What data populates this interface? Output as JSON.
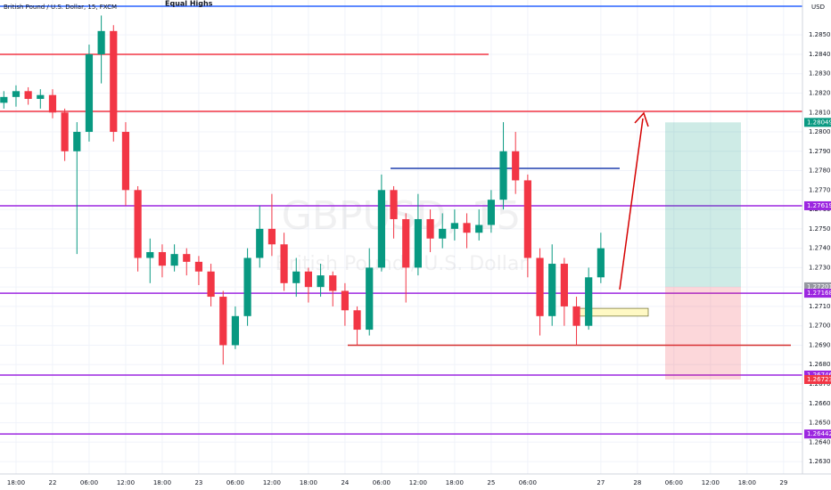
{
  "chart_data": {
    "type": "candlestick",
    "title": "British Pound / U.S. Dollar, 15, FXCM",
    "watermark": "GBPUSD, 15",
    "watermark_subtitle": "British Pound / U.S. Dollar",
    "annotation": "Equal Highs",
    "currency": "USD",
    "up_color": "#089981",
    "down_color": "#f23645",
    "xlim": [
      -2.63,
      129.1
    ],
    "xticks": [
      {
        "value": 0,
        "label": "18:00"
      },
      {
        "value": 6,
        "label": "22"
      },
      {
        "value": 12,
        "label": "06:00"
      },
      {
        "value": 18,
        "label": "12:00"
      },
      {
        "value": 24,
        "label": "18:00"
      },
      {
        "value": 30,
        "label": "23"
      },
      {
        "value": 36,
        "label": "06:00"
      },
      {
        "value": 42,
        "label": "12:00"
      },
      {
        "value": 48,
        "label": "18:00"
      },
      {
        "value": 54,
        "label": "24"
      },
      {
        "value": 60,
        "label": "06:00"
      },
      {
        "value": 66,
        "label": "12:00"
      },
      {
        "value": 72,
        "label": "18:00"
      },
      {
        "value": 78,
        "label": "25"
      },
      {
        "value": 84,
        "label": "06:00"
      },
      {
        "value": 96,
        "label": "27"
      },
      {
        "value": 102,
        "label": "28"
      },
      {
        "value": 108,
        "label": "06:00"
      },
      {
        "value": 114,
        "label": "12:00"
      },
      {
        "value": 120,
        "label": "18:00"
      },
      {
        "value": 126,
        "label": "29"
      }
    ],
    "ylim": [
      1.26236,
      1.2868
    ],
    "yticks": [
      {
        "value": 1.285,
        "label": "1.28500"
      },
      {
        "value": 1.284,
        "label": "1.28400"
      },
      {
        "value": 1.283,
        "label": "1.28300"
      },
      {
        "value": 1.282,
        "label": "1.28200"
      },
      {
        "value": 1.281,
        "label": "1.28100"
      },
      {
        "value": 1.28,
        "label": "1.28000"
      },
      {
        "value": 1.279,
        "label": "1.27900"
      },
      {
        "value": 1.278,
        "label": "1.27800"
      },
      {
        "value": 1.277,
        "label": "1.27700"
      },
      {
        "value": 1.276,
        "label": "1.27600"
      },
      {
        "value": 1.275,
        "label": "1.27500"
      },
      {
        "value": 1.274,
        "label": "1.27400"
      },
      {
        "value": 1.273,
        "label": "1.27300"
      },
      {
        "value": 1.272,
        "label": "1.27200"
      },
      {
        "value": 1.271,
        "label": "1.27100"
      },
      {
        "value": 1.27,
        "label": "1.27000"
      },
      {
        "value": 1.269,
        "label": "1.26900"
      },
      {
        "value": 1.268,
        "label": "1.26800"
      },
      {
        "value": 1.267,
        "label": "1.26700"
      },
      {
        "value": 1.266,
        "label": "1.26600"
      },
      {
        "value": 1.265,
        "label": "1.26500"
      },
      {
        "value": 1.264,
        "label": "1.26400"
      },
      {
        "value": 1.263,
        "label": "1.26300"
      }
    ],
    "x": [
      -2,
      0,
      2,
      4,
      6,
      8,
      10,
      12,
      14,
      16,
      18,
      20,
      22,
      24,
      26,
      28,
      30,
      32,
      34,
      36,
      38,
      40,
      42,
      44,
      46,
      48,
      50,
      52,
      54,
      56,
      58,
      60,
      62,
      64,
      66,
      68,
      70,
      72,
      74,
      76,
      78,
      80,
      82,
      84,
      86,
      88,
      90,
      92,
      94,
      96
    ],
    "open": [
      1.2815,
      1.2818,
      1.2821,
      1.2817,
      1.2819,
      1.281,
      1.279,
      1.28,
      1.284,
      1.2852,
      1.28,
      1.277,
      1.2735,
      1.2738,
      1.2731,
      1.2737,
      1.2733,
      1.2728,
      1.2715,
      1.269,
      1.2705,
      1.2735,
      1.275,
      1.2742,
      1.2722,
      1.2728,
      1.272,
      1.2726,
      1.2718,
      1.2708,
      1.2698,
      1.273,
      1.277,
      1.2755,
      1.273,
      1.2755,
      1.2745,
      1.275,
      1.2753,
      1.2748,
      1.2752,
      1.2765,
      1.279,
      1.2775,
      1.2735,
      1.2705,
      1.2732,
      1.271,
      1.27,
      1.2725
    ],
    "high": [
      1.2821,
      1.2824,
      1.2823,
      1.2822,
      1.2822,
      1.2812,
      1.2805,
      1.2845,
      1.286,
      1.2855,
      1.2805,
      1.2772,
      1.2745,
      1.2742,
      1.2742,
      1.274,
      1.2736,
      1.2732,
      1.2718,
      1.271,
      1.274,
      1.2762,
      1.2768,
      1.2748,
      1.2735,
      1.273,
      1.2732,
      1.2728,
      1.2722,
      1.271,
      1.274,
      1.2778,
      1.2772,
      1.2758,
      1.2768,
      1.276,
      1.2758,
      1.276,
      1.2758,
      1.276,
      1.277,
      1.2805,
      1.28,
      1.2778,
      1.274,
      1.2742,
      1.2735,
      1.2715,
      1.273,
      1.2748
    ],
    "low": [
      1.2812,
      1.2813,
      1.2814,
      1.2812,
      1.2807,
      1.2785,
      1.2737,
      1.2795,
      1.2825,
      1.2795,
      1.2762,
      1.2728,
      1.2722,
      1.2725,
      1.2728,
      1.2726,
      1.2721,
      1.271,
      1.268,
      1.2688,
      1.27,
      1.273,
      1.2736,
      1.2718,
      1.2715,
      1.2712,
      1.2715,
      1.271,
      1.27,
      1.269,
      1.2695,
      1.2728,
      1.2745,
      1.2712,
      1.2726,
      1.2738,
      1.274,
      1.2744,
      1.274,
      1.2744,
      1.2748,
      1.276,
      1.2768,
      1.2725,
      1.2695,
      1.27,
      1.27,
      1.269,
      1.2698,
      1.2722
    ],
    "close": [
      1.2818,
      1.2821,
      1.2817,
      1.2819,
      1.281,
      1.279,
      1.28,
      1.284,
      1.2852,
      1.28,
      1.277,
      1.2735,
      1.2738,
      1.2731,
      1.2737,
      1.2733,
      1.2728,
      1.2715,
      1.269,
      1.2705,
      1.2735,
      1.275,
      1.2742,
      1.2722,
      1.2728,
      1.272,
      1.2726,
      1.2718,
      1.2708,
      1.2698,
      1.273,
      1.277,
      1.2755,
      1.273,
      1.2755,
      1.2745,
      1.275,
      1.2753,
      1.2748,
      1.2752,
      1.2765,
      1.279,
      1.2775,
      1.2735,
      1.2705,
      1.2732,
      1.271,
      1.27,
      1.2725,
      1.274
    ],
    "levels": [
      {
        "value": 1.28648,
        "color": "#2962ff"
      },
      {
        "value": 1.284,
        "color": "#f23645"
      },
      {
        "value": 1.28106,
        "color": "#f23645"
      },
      {
        "value": 1.27812,
        "color": "#1e3fae"
      },
      {
        "value": 1.27619,
        "color": "#9c27e0"
      },
      {
        "value": 1.27168,
        "color": "#9c27e0"
      },
      {
        "value": 1.26746,
        "color": "#9c27e0"
      },
      {
        "value": 1.26442,
        "color": "#9c27e0"
      },
      {
        "value": 1.269,
        "color": "#d32f2f"
      }
    ],
    "position": {
      "target": 1.28049,
      "entry": 1.27201,
      "stop": 1.26723
    },
    "zone": [
      1.2709,
      1.2705
    ],
    "price_labels": [
      {
        "value": 1.28049,
        "color": "#089981"
      },
      {
        "value": 1.27619,
        "color": "#9c27e0"
      },
      {
        "value": 1.27201,
        "color": "#9598a1"
      },
      {
        "value": 1.27168,
        "color": "#9c27e0"
      },
      {
        "value": 1.26746,
        "color": "#9c27e0"
      },
      {
        "value": 1.26723,
        "color": "#f23645"
      },
      {
        "value": 1.26442,
        "color": "#9c27e0"
      }
    ]
  }
}
